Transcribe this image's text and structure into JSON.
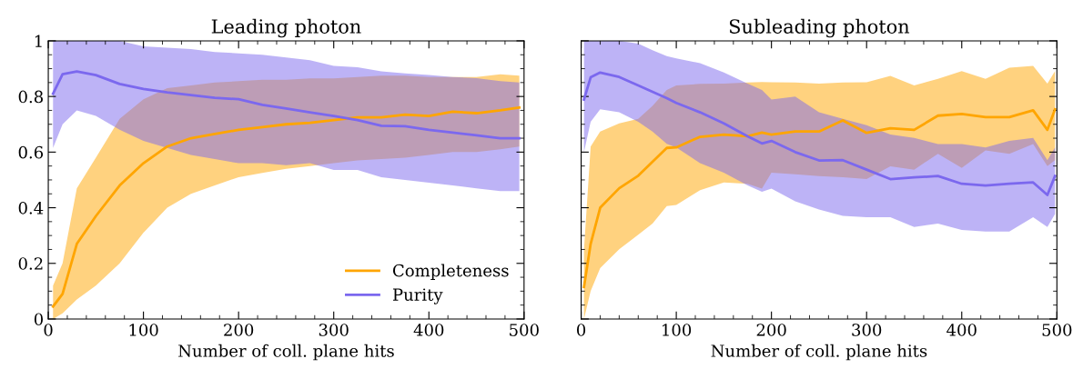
{
  "chart_data": [
    {
      "type": "line",
      "title": "Leading photon",
      "xlabel": "Number of coll. plane hits",
      "xlim": [
        0,
        500
      ],
      "ylim": [
        0,
        1
      ],
      "xticks": [
        0,
        100,
        200,
        300,
        400,
        500
      ],
      "yticks": [
        0,
        0.2,
        0.4,
        0.6,
        0.8,
        1
      ],
      "grid": false,
      "legend": "bottom right",
      "marker": "none",
      "line_style": "solid",
      "series": [
        {
          "name": "Completeness",
          "color": "#ffa500",
          "x": [
            5,
            15,
            30,
            50,
            75,
            100,
            125,
            150,
            175,
            200,
            225,
            250,
            275,
            300,
            325,
            350,
            375,
            400,
            425,
            450,
            475,
            495
          ],
          "values": [
            0.045,
            0.09,
            0.27,
            0.37,
            0.48,
            0.56,
            0.62,
            0.65,
            0.665,
            0.68,
            0.69,
            0.7,
            0.705,
            0.715,
            0.725,
            0.725,
            0.735,
            0.73,
            0.745,
            0.74,
            0.75,
            0.76
          ],
          "lower": [
            0,
            0.02,
            0.07,
            0.12,
            0.2,
            0.31,
            0.4,
            0.45,
            0.48,
            0.51,
            0.525,
            0.54,
            0.55,
            0.56,
            0.57,
            0.575,
            0.58,
            0.59,
            0.6,
            0.6,
            0.61,
            0.62
          ],
          "upper": [
            0.12,
            0.2,
            0.47,
            0.58,
            0.72,
            0.79,
            0.83,
            0.84,
            0.85,
            0.855,
            0.86,
            0.86,
            0.865,
            0.865,
            0.87,
            0.875,
            0.875,
            0.87,
            0.87,
            0.87,
            0.88,
            0.875
          ]
        },
        {
          "name": "Purity",
          "color": "#7b68ee",
          "x": [
            5,
            15,
            30,
            50,
            75,
            100,
            125,
            150,
            175,
            200,
            225,
            250,
            275,
            300,
            325,
            350,
            375,
            400,
            425,
            450,
            475,
            495
          ],
          "values": [
            0.81,
            0.88,
            0.89,
            0.877,
            0.845,
            0.827,
            0.815,
            0.805,
            0.795,
            0.79,
            0.77,
            0.757,
            0.743,
            0.73,
            0.715,
            0.695,
            0.693,
            0.68,
            0.67,
            0.66,
            0.65,
            0.65
          ],
          "lower": [
            0.615,
            0.7,
            0.75,
            0.73,
            0.68,
            0.64,
            0.615,
            0.59,
            0.575,
            0.56,
            0.56,
            0.553,
            0.56,
            0.536,
            0.536,
            0.51,
            0.5,
            0.49,
            0.48,
            0.47,
            0.46,
            0.46
          ],
          "upper": [
            1,
            1,
            1,
            1,
            1,
            0.98,
            0.975,
            0.97,
            0.96,
            0.955,
            0.95,
            0.94,
            0.93,
            0.91,
            0.905,
            0.89,
            0.883,
            0.877,
            0.87,
            0.866,
            0.855,
            0.85
          ]
        }
      ]
    },
    {
      "type": "line",
      "title": "Subleading photon",
      "xlabel": "Number of coll. plane hits",
      "xlim": [
        0,
        500
      ],
      "ylim": [
        0,
        1
      ],
      "xticks": [
        0,
        100,
        200,
        300,
        400,
        500
      ],
      "yticks": [
        0,
        0.2,
        0.4,
        0.6,
        0.8,
        1
      ],
      "tick_labels": "x",
      "grid": false,
      "legend": false,
      "marker": "none",
      "line_style": "solid",
      "series": [
        {
          "color": "#ffa500",
          "x": [
            3,
            10,
            20,
            40,
            60,
            75,
            90,
            100,
            125,
            150,
            175,
            190,
            200,
            225,
            250,
            275,
            300,
            325,
            350,
            375,
            400,
            425,
            450,
            475,
            490,
            498
          ],
          "values": [
            0.115,
            0.27,
            0.4,
            0.47,
            0.515,
            0.565,
            0.615,
            0.617,
            0.655,
            0.663,
            0.657,
            0.67,
            0.663,
            0.674,
            0.674,
            0.714,
            0.669,
            0.686,
            0.68,
            0.731,
            0.737,
            0.726,
            0.726,
            0.75,
            0.68,
            0.754
          ],
          "lower": [
            0,
            0.1,
            0.183,
            0.251,
            0.303,
            0.343,
            0.406,
            0.41,
            0.463,
            0.491,
            0.486,
            0.469,
            0.526,
            0.52,
            0.514,
            0.51,
            0.503,
            0.549,
            0.537,
            0.594,
            0.543,
            0.606,
            0.594,
            0.629,
            0.55,
            0.571
          ],
          "upper": [
            0.25,
            0.62,
            0.674,
            0.703,
            0.72,
            0.766,
            0.823,
            0.84,
            0.845,
            0.846,
            0.85,
            0.852,
            0.851,
            0.85,
            0.846,
            0.85,
            0.851,
            0.874,
            0.84,
            0.863,
            0.891,
            0.863,
            0.903,
            0.91,
            0.846,
            0.891
          ]
        },
        {
          "color": "#7b68ee",
          "x": [
            3,
            10,
            20,
            40,
            60,
            75,
            90,
            100,
            125,
            150,
            175,
            190,
            200,
            225,
            250,
            275,
            300,
            325,
            350,
            375,
            400,
            425,
            450,
            475,
            490,
            498
          ],
          "values": [
            0.789,
            0.869,
            0.886,
            0.87,
            0.84,
            0.817,
            0.794,
            0.777,
            0.743,
            0.703,
            0.657,
            0.631,
            0.64,
            0.6,
            0.57,
            0.571,
            0.537,
            0.503,
            0.509,
            0.514,
            0.486,
            0.48,
            0.486,
            0.491,
            0.446,
            0.514
          ],
          "lower": [
            0.6,
            0.709,
            0.754,
            0.743,
            0.709,
            0.674,
            0.63,
            0.617,
            0.56,
            0.526,
            0.48,
            0.457,
            0.469,
            0.423,
            0.394,
            0.371,
            0.366,
            0.366,
            0.331,
            0.343,
            0.32,
            0.314,
            0.314,
            0.366,
            0.331,
            0.377
          ],
          "upper": [
            1,
            1,
            1,
            1,
            0.99,
            0.966,
            0.945,
            0.937,
            0.92,
            0.886,
            0.846,
            0.823,
            0.789,
            0.8,
            0.743,
            0.72,
            0.697,
            0.663,
            0.651,
            0.629,
            0.629,
            0.617,
            0.64,
            0.651,
            0.571,
            0.617
          ]
        }
      ]
    }
  ]
}
